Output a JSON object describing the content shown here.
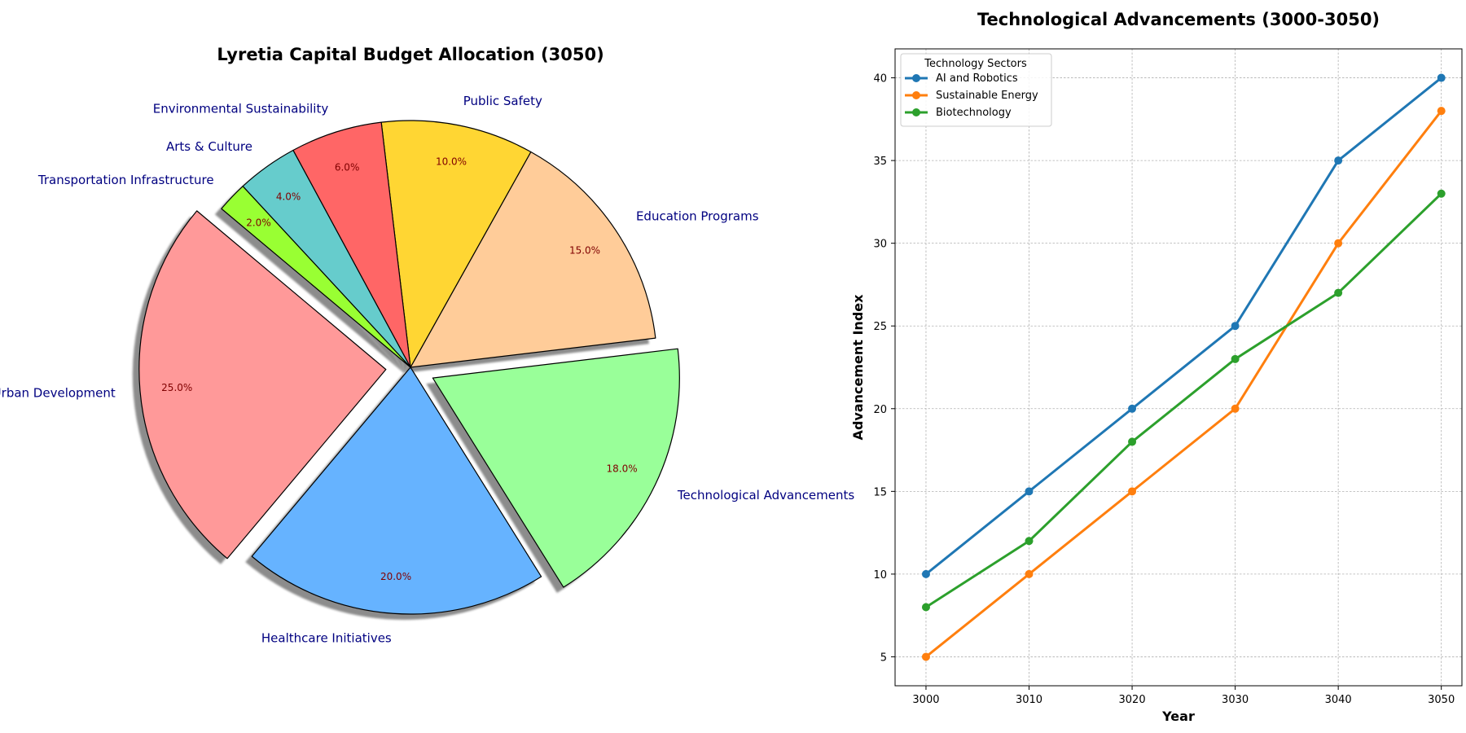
{
  "chart_data": [
    {
      "type": "pie",
      "title": "Lyretia Capital Budget Allocation (3050)",
      "start_angle_deg": 140,
      "direction": "counterclockwise",
      "shadow": true,
      "slices": [
        {
          "label": "Urban Development",
          "value": 25,
          "pct_label": "25.0%",
          "color": "#ff9999",
          "explode": 0.1
        },
        {
          "label": "Healthcare Initiatives",
          "value": 20,
          "pct_label": "20.0%",
          "color": "#66b3ff",
          "explode": 0.0
        },
        {
          "label": "Technological Advancements",
          "value": 18,
          "pct_label": "18.0%",
          "color": "#99ff99",
          "explode": 0.1
        },
        {
          "label": "Education Programs",
          "value": 15,
          "pct_label": "15.0%",
          "color": "#ffcc99",
          "explode": 0.0
        },
        {
          "label": "Public Safety",
          "value": 10,
          "pct_label": "10.0%",
          "color": "#ffd633",
          "explode": 0.0
        },
        {
          "label": "Environmental Sustainability",
          "value": 6,
          "pct_label": "6.0%",
          "color": "#ff6666",
          "explode": 0.0
        },
        {
          "label": "Arts & Culture",
          "value": 4,
          "pct_label": "4.0%",
          "color": "#66cccc",
          "explode": 0.0
        },
        {
          "label": "Transportation Infrastructure",
          "value": 2,
          "pct_label": "2.0%",
          "color": "#99ff33",
          "explode": 0.0
        }
      ]
    },
    {
      "type": "line",
      "title": "Technological Advancements (3000-3050)",
      "xlabel": "Year",
      "ylabel": "Advancement Index",
      "x": [
        3000,
        3010,
        3020,
        3030,
        3040,
        3050
      ],
      "xlim": [
        2997,
        3052
      ],
      "ylim": [
        3.25,
        41.75
      ],
      "yticks": [
        5,
        10,
        15,
        20,
        25,
        30,
        35,
        40
      ],
      "grid": true,
      "legend_title": "Technology Sectors",
      "legend_position": "top-left",
      "series": [
        {
          "name": "AI and Robotics",
          "values": [
            10,
            15,
            20,
            25,
            35,
            40
          ],
          "color": "#1f77b4"
        },
        {
          "name": "Sustainable Energy",
          "values": [
            5,
            10,
            15,
            20,
            30,
            38
          ],
          "color": "#ff7f0e"
        },
        {
          "name": "Biotechnology",
          "values": [
            8,
            12,
            18,
            23,
            27,
            33
          ],
          "color": "#2ca02c"
        }
      ]
    }
  ]
}
